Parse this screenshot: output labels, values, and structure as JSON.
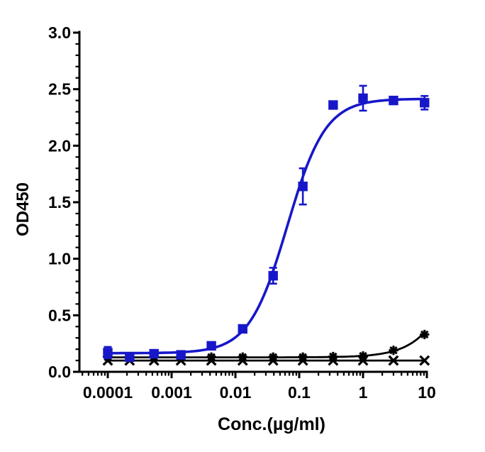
{
  "figure": {
    "background": "#ffffff"
  },
  "chart_data": {
    "type": "line",
    "title": "",
    "xlabel": "Conc.(µg/ml)",
    "ylabel": "OD450",
    "x_scale": "log10",
    "xlim": [
      4e-05,
      10
    ],
    "ylim": [
      0,
      3
    ],
    "grid": false,
    "legend": "none",
    "axis_color": "#000000",
    "x_major_ticks": {
      "values": [
        0.0001,
        0.001,
        0.01,
        0.1,
        1,
        10
      ],
      "labels": [
        "0.0001",
        "0.001",
        "0.01",
        "0.1",
        "1",
        "10"
      ]
    },
    "x_minor_ticks": "log-decades 2-9 subdivisions",
    "y_major_ticks": {
      "values": [
        0,
        0.5,
        1.0,
        1.5,
        2.0,
        2.5,
        3.0
      ],
      "labels": [
        "0.0",
        "0.5",
        "1.0",
        "1.5",
        "2.0",
        "2.5",
        "3.0"
      ]
    },
    "y_minor_step": 0.1,
    "x": [
      0.0001,
      0.00022,
      0.00053,
      0.0014,
      0.0042,
      0.013,
      0.039,
      0.114,
      0.34,
      1,
      3,
      9.2
    ],
    "series": [
      {
        "name": "blue-filled-squares",
        "marker": "square",
        "color": "#1717c9",
        "line_width": 3.6,
        "y": [
          0.17,
          0.13,
          0.16,
          0.15,
          0.23,
          0.38,
          0.85,
          1.64,
          2.36,
          2.42,
          2.4,
          2.38
        ],
        "yerr": [
          0.05,
          0.03,
          0,
          0,
          0.02,
          0.02,
          0.07,
          0.16,
          0,
          0.11,
          0,
          0.06
        ],
        "fit": {
          "type": "4pl",
          "bottom": 0.165,
          "top": 2.415,
          "ec50": 0.065,
          "hill": 1.45
        }
      },
      {
        "name": "black-stars",
        "marker": "star",
        "color": "#000000",
        "line_width": 2.8,
        "y": [
          0.13,
          0.13,
          0.13,
          0.13,
          0.13,
          0.13,
          0.13,
          0.13,
          0.135,
          0.14,
          0.19,
          0.33
        ],
        "yerr": [
          0,
          0,
          0,
          0,
          0,
          0,
          0,
          0,
          0,
          0,
          0,
          0
        ],
        "fit": {
          "type": "4pl",
          "bottom": 0.128,
          "top": 2.4,
          "ec50": 51,
          "hill": 1.3
        }
      },
      {
        "name": "black-crosses",
        "marker": "cross",
        "color": "#000000",
        "line_width": 2.8,
        "y": [
          0.1,
          0.1,
          0.1,
          0.1,
          0.1,
          0.1,
          0.1,
          0.1,
          0.1,
          0.1,
          0.1,
          0.1
        ],
        "yerr": [
          0,
          0,
          0,
          0,
          0,
          0,
          0,
          0,
          0,
          0,
          0,
          0
        ],
        "fit": {
          "type": "flat",
          "value": 0.1
        }
      }
    ]
  }
}
